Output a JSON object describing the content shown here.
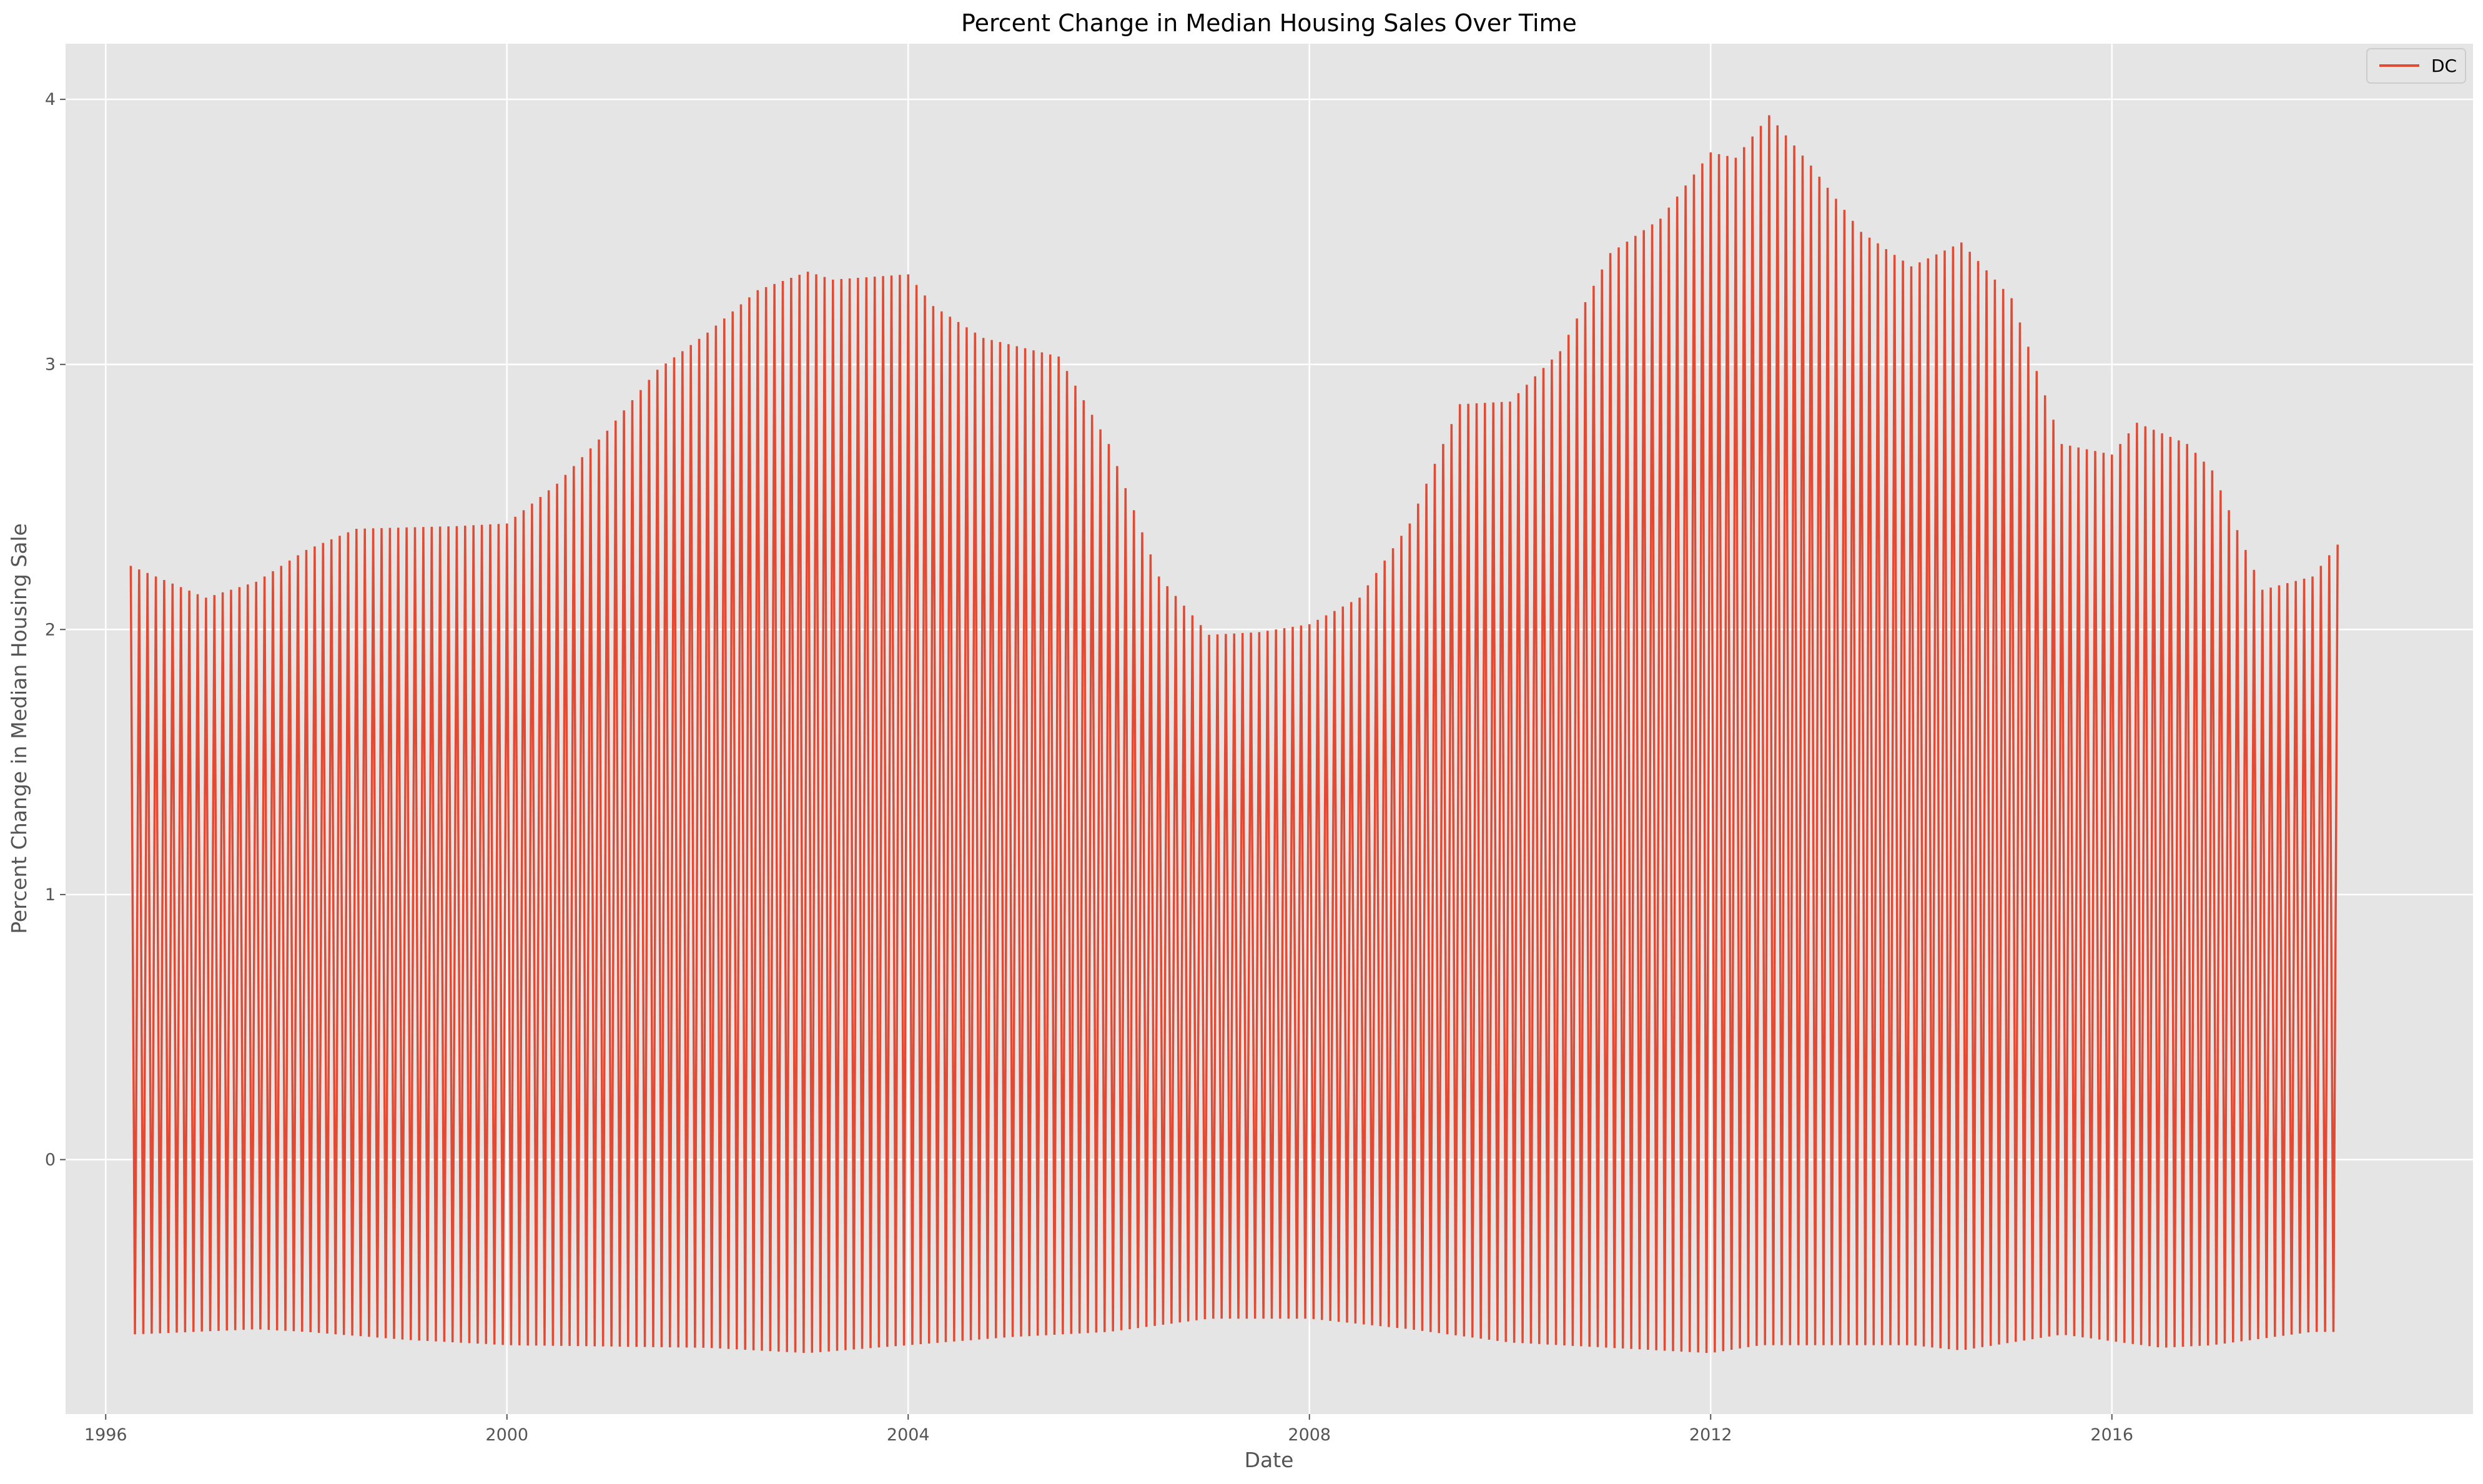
{
  "chart_data": {
    "type": "line",
    "title": "Percent Change in Median Housing Sales Over Time",
    "xlabel": "Date",
    "ylabel": "Percent Change in Median Housing Sale",
    "x_tick_labels": [
      "1996",
      "2000",
      "2004",
      "2008",
      "2012",
      "2016"
    ],
    "x_tick_years": [
      1996,
      2000,
      2004,
      2008,
      2012,
      2016
    ],
    "y_ticks": [
      0,
      1,
      2,
      3,
      4
    ],
    "xlim": [
      1995.6,
      2019.6
    ],
    "ylim": [
      -0.96,
      4.21
    ],
    "grid": true,
    "legend_position": "upper right",
    "series": [
      {
        "name": "DC",
        "color": "#E24A33",
        "x_start": "1996-04",
        "x_end": "2018-04",
        "peak_envelope": [
          [
            "1996-04",
            2.24
          ],
          [
            "1996-10",
            2.16
          ],
          [
            "1997-01",
            2.12
          ],
          [
            "1997-07",
            2.18
          ],
          [
            "1998-01",
            2.3
          ],
          [
            "1998-07",
            2.38
          ],
          [
            "1999-07",
            2.39
          ],
          [
            "2000-01",
            2.4
          ],
          [
            "2000-07",
            2.55
          ],
          [
            "2001-01",
            2.75
          ],
          [
            "2001-07",
            2.98
          ],
          [
            "2002-01",
            3.12
          ],
          [
            "2002-07",
            3.28
          ],
          [
            "2003-01",
            3.35
          ],
          [
            "2003-04",
            3.32
          ],
          [
            "2004-01",
            3.34
          ],
          [
            "2004-04",
            3.22
          ],
          [
            "2004-10",
            3.1
          ],
          [
            "2005-07",
            3.03
          ],
          [
            "2006-01",
            2.7
          ],
          [
            "2006-07",
            2.2
          ],
          [
            "2007-01",
            1.98
          ],
          [
            "2007-07",
            1.99
          ],
          [
            "2008-01",
            2.02
          ],
          [
            "2008-07",
            2.12
          ],
          [
            "2009-01",
            2.4
          ],
          [
            "2009-07",
            2.85
          ],
          [
            "2010-01",
            2.86
          ],
          [
            "2010-07",
            3.05
          ],
          [
            "2011-01",
            3.42
          ],
          [
            "2011-07",
            3.55
          ],
          [
            "2012-01",
            3.8
          ],
          [
            "2012-04",
            3.78
          ],
          [
            "2012-08",
            3.94
          ],
          [
            "2013-01",
            3.75
          ],
          [
            "2013-07",
            3.5
          ],
          [
            "2014-01",
            3.37
          ],
          [
            "2014-07",
            3.46
          ],
          [
            "2015-01",
            3.25
          ],
          [
            "2015-07",
            2.7
          ],
          [
            "2016-01",
            2.66
          ],
          [
            "2016-04",
            2.78
          ],
          [
            "2016-10",
            2.7
          ],
          [
            "2017-01",
            2.6
          ],
          [
            "2017-07",
            2.15
          ],
          [
            "2018-01",
            2.2
          ],
          [
            "2018-04",
            2.32
          ]
        ],
        "trough_envelope": [
          [
            "1996-04",
            -0.66
          ],
          [
            "1997-07",
            -0.64
          ],
          [
            "1998-01",
            -0.65
          ],
          [
            "1999-01",
            -0.68
          ],
          [
            "2000-01",
            -0.7
          ],
          [
            "2002-01",
            -0.71
          ],
          [
            "2003-01",
            -0.73
          ],
          [
            "2004-01",
            -0.7
          ],
          [
            "2005-01",
            -0.67
          ],
          [
            "2006-01",
            -0.65
          ],
          [
            "2007-01",
            -0.6
          ],
          [
            "2008-01",
            -0.6
          ],
          [
            "2009-01",
            -0.64
          ],
          [
            "2010-01",
            -0.69
          ],
          [
            "2011-01",
            -0.71
          ],
          [
            "2012-01",
            -0.73
          ],
          [
            "2012-07",
            -0.7
          ],
          [
            "2014-01",
            -0.7
          ],
          [
            "2014-07",
            -0.72
          ],
          [
            "2015-07",
            -0.66
          ],
          [
            "2016-07",
            -0.71
          ],
          [
            "2017-01",
            -0.7
          ],
          [
            "2018-01",
            -0.65
          ],
          [
            "2018-04",
            -0.65
          ]
        ]
      }
    ]
  }
}
